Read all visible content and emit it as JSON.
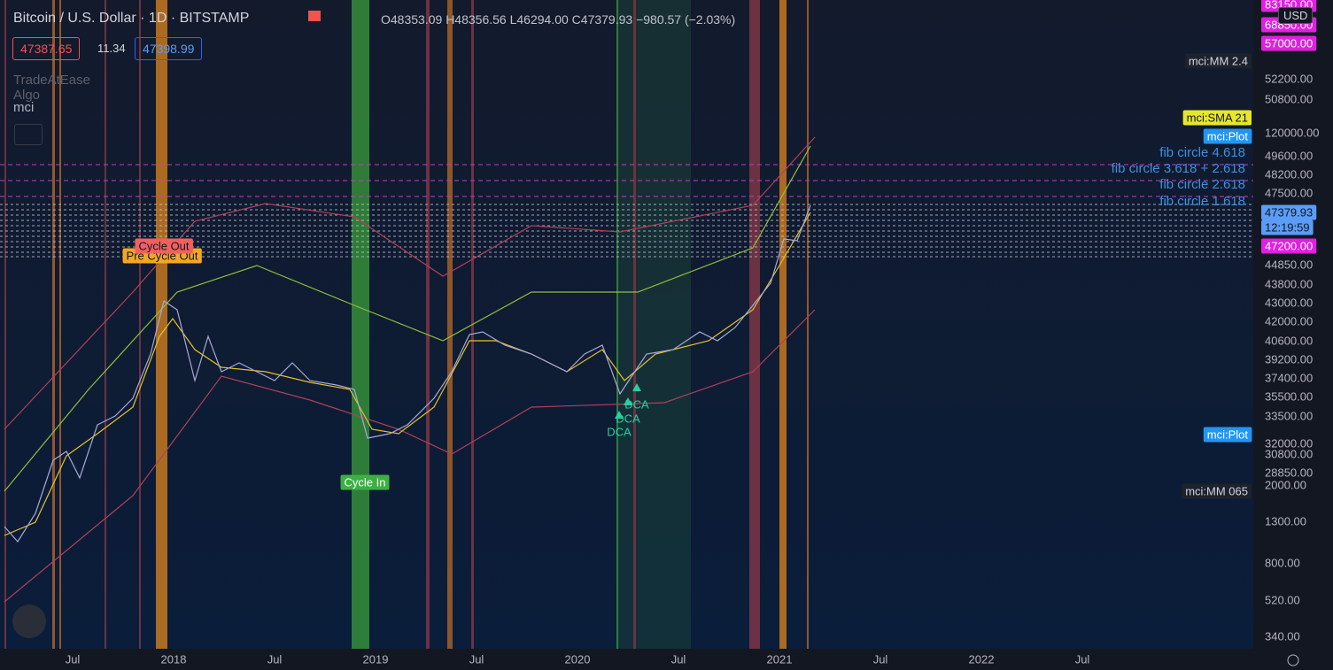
{
  "header": {
    "symbol": "Bitcoin / U.S. Dollar · 1D · BITSTAMP",
    "ohlc": [
      "O48353.09",
      "H48356.56",
      "L46294.00",
      "C47379.93",
      "−980.57 (−2.03%)"
    ],
    "bid": "47387.65",
    "spread": "11.34",
    "ask": "47398.99",
    "indicators": [
      "TradeAtEase Algo",
      "mci"
    ]
  },
  "currency": "USD",
  "price_axis": [
    "83150.00",
    "68850.00",
    "57000.00",
    "52200.00",
    "50800.00",
    "120000.00",
    "49600.00",
    "48200.00",
    "47500.00",
    "47379.93",
    "12:19:59",
    "47200.00",
    "44850.00",
    "43800.00",
    "43000.00",
    "42000.00",
    "40600.00",
    "39200.00",
    "37400.00",
    "35500.00",
    "33500.00",
    "32000.00",
    "30800.00",
    "28850.00",
    "2000.00",
    "1300.00",
    "800.00",
    "520.00",
    "340.00"
  ],
  "tags": [
    "mci:MM 2.4",
    "mci:SMA 21",
    "mci:Plot",
    "mci:Plot",
    "mci:MM 065"
  ],
  "fib_labels": [
    "fib circle 4.618",
    "fib circle 3.618 + 2.618",
    "fib circle 2.618",
    "fib circle 1.618"
  ],
  "time_axis": [
    "Jul",
    "2018",
    "Jul",
    "2019",
    "Jul",
    "2020",
    "Jul",
    "2021",
    "Jul",
    "2022",
    "Jul"
  ],
  "annotations": {
    "cycle_out": "Cycle Out",
    "pre_cycle_out": "Pre Cycle Out",
    "cycle_in": "Cycle In",
    "dca": [
      "DCA",
      "DCA",
      "DCA"
    ]
  }
}
